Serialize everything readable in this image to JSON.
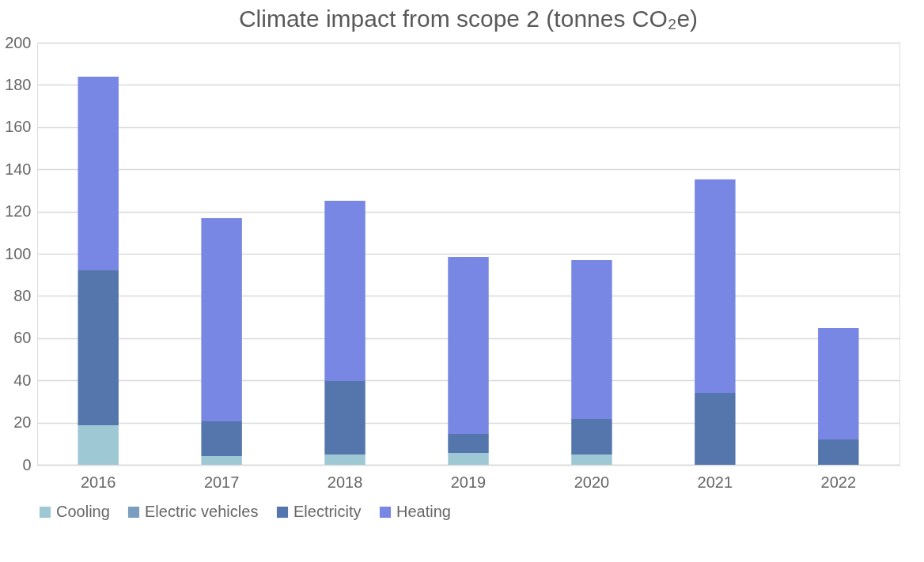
{
  "chart_data": {
    "type": "bar",
    "title": "Climate impact from scope 2 (tonnes CO₂e)",
    "categories": [
      "2016",
      "2017",
      "2018",
      "2019",
      "2020",
      "2021",
      "2022"
    ],
    "stacked": true,
    "ylim": [
      0,
      200
    ],
    "yticks": [
      0,
      20,
      40,
      60,
      80,
      100,
      120,
      140,
      160,
      180,
      200
    ],
    "grid": "y",
    "legend": "bottom",
    "series": [
      {
        "name": "Cooling",
        "color": "#9fc8d5",
        "values": [
          18.7,
          4.1,
          4.9,
          5.6,
          4.9,
          0,
          0
        ]
      },
      {
        "name": "Electric vehicles",
        "color": "#7b9ebf",
        "values": [
          0,
          0,
          0,
          0,
          0,
          0,
          0
        ]
      },
      {
        "name": "Electricity",
        "color": "#5576ad",
        "values": [
          73.4,
          16.5,
          34.8,
          9.0,
          16.8,
          34.1,
          12.0
        ]
      },
      {
        "name": "Heating",
        "color": "#7787e3",
        "values": [
          91.8,
          96.3,
          85.4,
          83.9,
          75.3,
          101.1,
          52.8
        ]
      }
    ]
  }
}
